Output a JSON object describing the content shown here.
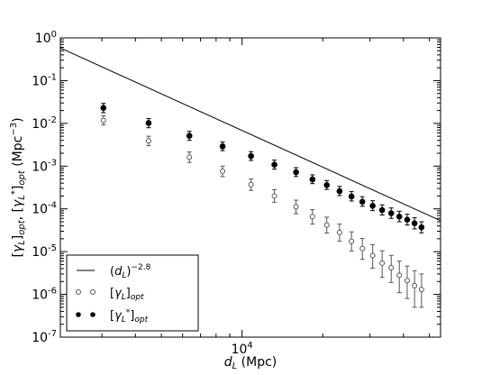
{
  "chart_data": {
    "type": "scatter",
    "title": "",
    "xlabel": "d_L (Mpc)",
    "ylabel": "[γ_L]_opt, [γ_L*]_opt (Mpc^-3)",
    "xscale": "log",
    "yscale": "log",
    "xlim": [
      2100,
      55000
    ],
    "ylim": [
      1e-07,
      1
    ],
    "x_ticks": [
      {
        "value": 10000,
        "base": "10",
        "exp": "4"
      }
    ],
    "y_ticks": [
      {
        "value": 1,
        "base": "10",
        "exp": "0"
      },
      {
        "value": 0.1,
        "base": "10",
        "exp": "-1"
      },
      {
        "value": 0.01,
        "base": "10",
        "exp": "-2"
      },
      {
        "value": 0.001,
        "base": "10",
        "exp": "-3"
      },
      {
        "value": 0.0001,
        "base": "10",
        "exp": "-4"
      },
      {
        "value": 1e-05,
        "base": "10",
        "exp": "-5"
      },
      {
        "value": 1e-06,
        "base": "10",
        "exp": "-6"
      },
      {
        "value": 1e-07,
        "base": "10",
        "exp": "-7"
      }
    ],
    "grid": false,
    "legend_position": "bottom-left",
    "series": [
      {
        "name": "(d_L)^-2.8",
        "kind": "line",
        "color": "#000000",
        "x": [
          2100,
          55000
        ],
        "y": [
          0.58,
          5.3e-05
        ]
      },
      {
        "name": "[γ_L]_opt",
        "kind": "points",
        "marker": "open-circle",
        "color": "#555555",
        "x": [
          3040,
          4480,
          6360,
          8460,
          10800,
          13200,
          15900,
          18300,
          20700,
          23100,
          25600,
          28100,
          30700,
          33300,
          36000,
          38600,
          41300,
          44000,
          46700
        ],
        "y": [
          0.0118,
          0.0039,
          0.00162,
          0.00076,
          0.00037,
          0.0002,
          0.000112,
          6.6e-05,
          4.2e-05,
          2.8e-05,
          1.75e-05,
          1.18e-05,
          8.1e-06,
          5.4e-06,
          4.2e-06,
          2.8e-06,
          2.1e-06,
          1.6e-06,
          1.3e-06
        ],
        "err_lo": [
          0.0026,
          0.0009,
          0.0004,
          0.00019,
          0.0001,
          5.7e-05,
          3.5e-05,
          2.2e-05,
          1.48e-05,
          1.05e-05,
          7.1e-06,
          5.2e-06,
          4e-06,
          2.9e-06,
          2.3e-06,
          1.7e-06,
          1.3e-06,
          1.1e-06,
          8e-07
        ],
        "err_hi": [
          0.0032,
          0.0011,
          0.00052,
          0.00024,
          0.00013,
          8e-05,
          4.8e-05,
          3e-05,
          2.2e-05,
          1.6e-05,
          1.15e-05,
          8.5e-06,
          6.5e-06,
          5.1e-06,
          4e-06,
          3.2e-06,
          2.5e-06,
          2e-06,
          1.7e-06
        ]
      },
      {
        "name": "[γ_L*]_opt",
        "kind": "points",
        "marker": "filled-circle",
        "color": "#000000",
        "x": [
          3040,
          4480,
          6360,
          8460,
          10800,
          13200,
          15900,
          18300,
          20700,
          23100,
          25600,
          28100,
          30700,
          33300,
          36000,
          38600,
          41300,
          44000,
          46700
        ],
        "y": [
          0.023,
          0.0102,
          0.0051,
          0.0029,
          0.00172,
          0.00108,
          0.00072,
          0.00049,
          0.00036,
          0.00026,
          0.000195,
          0.000147,
          0.000118,
          9.4e-05,
          7.9e-05,
          6.6e-05,
          5.6e-05,
          4.6e-05,
          3.7e-05
        ],
        "err_lo": [
          0.0052,
          0.0023,
          0.0011,
          0.0006,
          0.00036,
          0.00023,
          0.00015,
          0.0001,
          7.5e-05,
          5.5e-05,
          4.2e-05,
          3.2e-05,
          2.7e-05,
          2.2e-05,
          1.9e-05,
          1.6e-05,
          1.4e-05,
          1.2e-05,
          9.5e-06
        ],
        "err_hi": [
          0.0063,
          0.0028,
          0.0014,
          0.00078,
          0.00046,
          0.0003,
          0.0002,
          0.000135,
          0.0001,
          7.5e-05,
          5.8e-05,
          4.5e-05,
          3.7e-05,
          3e-05,
          2.6e-05,
          2.2e-05,
          1.9e-05,
          1.6e-05,
          1.3e-05
        ]
      }
    ]
  }
}
